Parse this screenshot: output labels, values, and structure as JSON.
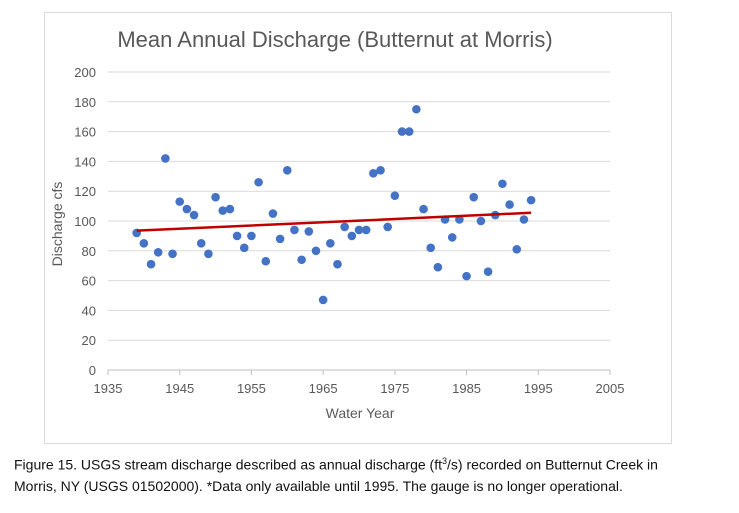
{
  "chart_data": {
    "type": "scatter",
    "title": "Mean Annual Discharge (Butternut at Morris)",
    "xlabel": "Water Year",
    "ylabel": "Discharge cfs",
    "xlim": [
      1935,
      2005
    ],
    "ylim": [
      0,
      200
    ],
    "x_ticks": [
      1935,
      1945,
      1955,
      1965,
      1975,
      1985,
      1995,
      2005
    ],
    "y_ticks": [
      0,
      20,
      40,
      60,
      80,
      100,
      120,
      140,
      160,
      180,
      200
    ],
    "grid": true,
    "legend": "none",
    "point_color": "#4472c4",
    "trendline_color": "#c00000",
    "points": [
      [
        1939,
        92
      ],
      [
        1940,
        85
      ],
      [
        1941,
        71
      ],
      [
        1942,
        79
      ],
      [
        1943,
        142
      ],
      [
        1944,
        78
      ],
      [
        1945,
        113
      ],
      [
        1946,
        108
      ],
      [
        1947,
        104
      ],
      [
        1948,
        85
      ],
      [
        1949,
        78
      ],
      [
        1950,
        116
      ],
      [
        1951,
        107
      ],
      [
        1952,
        108
      ],
      [
        1953,
        90
      ],
      [
        1954,
        82
      ],
      [
        1955,
        90
      ],
      [
        1956,
        126
      ],
      [
        1957,
        73
      ],
      [
        1958,
        105
      ],
      [
        1959,
        88
      ],
      [
        1960,
        134
      ],
      [
        1961,
        94
      ],
      [
        1962,
        74
      ],
      [
        1963,
        93
      ],
      [
        1964,
        80
      ],
      [
        1965,
        47
      ],
      [
        1966,
        85
      ],
      [
        1967,
        71
      ],
      [
        1968,
        96
      ],
      [
        1969,
        90
      ],
      [
        1970,
        94
      ],
      [
        1971,
        94
      ],
      [
        1972,
        132
      ],
      [
        1973,
        134
      ],
      [
        1974,
        96
      ],
      [
        1975,
        117
      ],
      [
        1976,
        160
      ],
      [
        1977,
        160
      ],
      [
        1978,
        175
      ],
      [
        1979,
        108
      ],
      [
        1980,
        82
      ],
      [
        1981,
        69
      ],
      [
        1982,
        101
      ],
      [
        1983,
        89
      ],
      [
        1984,
        101
      ],
      [
        1985,
        63
      ],
      [
        1986,
        116
      ],
      [
        1987,
        100
      ],
      [
        1988,
        66
      ],
      [
        1989,
        104
      ],
      [
        1990,
        125
      ],
      [
        1991,
        111
      ],
      [
        1992,
        81
      ],
      [
        1993,
        101
      ],
      [
        1994,
        114
      ]
    ],
    "trendline": [
      [
        1939,
        93.5
      ],
      [
        1994,
        105.5
      ]
    ]
  },
  "caption": {
    "text_before_sup": "Figure 15. USGS stream discharge described as annual discharge (ft",
    "sup": "3",
    "text_after_sup": "/s) recorded on Butternut Creek in",
    "line2": "Morris, NY (USGS 01502000). *Data only available until 1995.  The gauge is no longer operational."
  }
}
